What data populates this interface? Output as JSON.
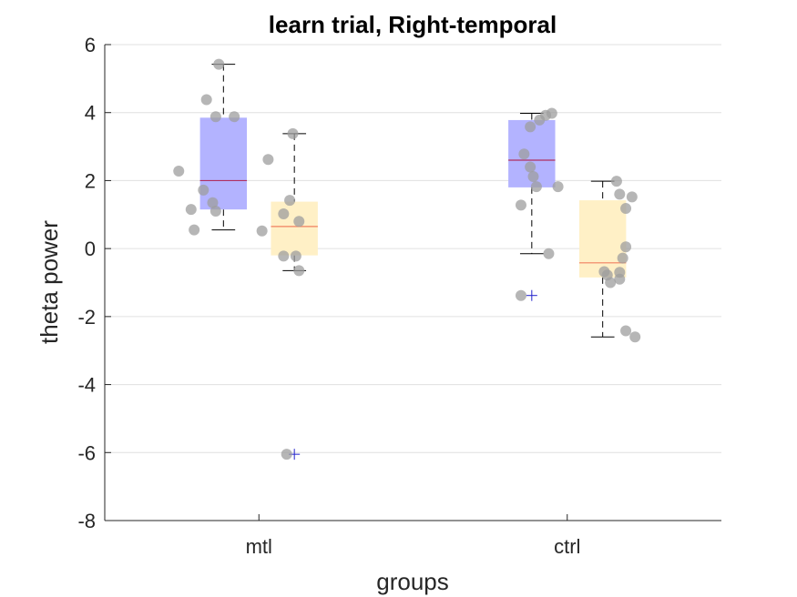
{
  "chart_data": {
    "type": "boxplot",
    "title": "learn trial, Right-temporal",
    "xlabel": "groups",
    "ylabel": "theta power",
    "ylim": [
      -8,
      6
    ],
    "yticks": [
      6,
      4,
      2,
      0,
      -2,
      -4,
      -6,
      -8
    ],
    "yticklabels": [
      "6",
      "4",
      "2",
      "0",
      "-2",
      "-4",
      "-6",
      "-8"
    ],
    "categories": [
      "mtl",
      "ctrl"
    ],
    "grid": true,
    "colors": {
      "box_a": "#b3b3ff",
      "box_b": "#fff0c6",
      "median_a": "#b03060",
      "median_b": "#f08060",
      "point": "#9e9e9e",
      "outlier": "#2222cc",
      "whisker": "#000000",
      "grid": "#e0e0e0"
    },
    "boxes": [
      {
        "category": "mtl",
        "slot": 0,
        "q1": 1.15,
        "median": 2.0,
        "q3": 3.85,
        "whisker_low": 0.55,
        "whisker_high": 5.42,
        "outliers": [],
        "points": [
          [
            0.37,
            5.42
          ],
          [
            0.33,
            4.38
          ],
          [
            0.36,
            3.88
          ],
          [
            0.42,
            3.88
          ],
          [
            0.24,
            2.28
          ],
          [
            0.32,
            1.72
          ],
          [
            0.35,
            1.35
          ],
          [
            0.28,
            1.15
          ],
          [
            0.36,
            1.1
          ],
          [
            0.29,
            0.55
          ]
        ]
      },
      {
        "category": "mtl",
        "slot": 1,
        "q1": -0.2,
        "median": 0.65,
        "q3": 1.38,
        "whisker_low": -0.65,
        "whisker_high": 3.38,
        "outliers": [
          -6.05
        ],
        "points": [
          [
            0.61,
            3.38
          ],
          [
            0.53,
            2.62
          ],
          [
            0.6,
            1.42
          ],
          [
            0.58,
            1.02
          ],
          [
            0.63,
            0.8
          ],
          [
            0.51,
            0.52
          ],
          [
            0.58,
            -0.22
          ],
          [
            0.62,
            -0.22
          ],
          [
            0.63,
            -0.65
          ],
          [
            0.59,
            -6.05
          ]
        ]
      },
      {
        "category": "ctrl",
        "slot": 0,
        "q1": 1.8,
        "median": 2.6,
        "q3": 3.78,
        "whisker_low": -0.15,
        "whisker_high": 3.98,
        "outliers": [
          -1.38
        ],
        "points": [
          [
            1.45,
            3.98
          ],
          [
            1.43,
            3.92
          ],
          [
            1.41,
            3.78
          ],
          [
            1.38,
            3.58
          ],
          [
            1.36,
            2.78
          ],
          [
            1.38,
            2.4
          ],
          [
            1.39,
            2.12
          ],
          [
            1.4,
            1.82
          ],
          [
            1.47,
            1.82
          ],
          [
            1.35,
            1.28
          ],
          [
            1.44,
            -0.15
          ],
          [
            1.35,
            -1.38
          ]
        ]
      },
      {
        "category": "ctrl",
        "slot": 1,
        "q1": -0.85,
        "median": -0.42,
        "q3": 1.42,
        "whisker_low": -2.6,
        "whisker_high": 1.98,
        "outliers": [],
        "points": [
          [
            1.66,
            1.98
          ],
          [
            1.67,
            1.6
          ],
          [
            1.71,
            1.52
          ],
          [
            1.69,
            1.18
          ],
          [
            1.69,
            0.05
          ],
          [
            1.68,
            -0.28
          ],
          [
            1.62,
            -0.68
          ],
          [
            1.63,
            -0.78
          ],
          [
            1.67,
            -0.7
          ],
          [
            1.67,
            -0.9
          ],
          [
            1.64,
            -1.0
          ],
          [
            1.69,
            -2.42
          ],
          [
            1.72,
            -2.6
          ]
        ]
      }
    ]
  }
}
